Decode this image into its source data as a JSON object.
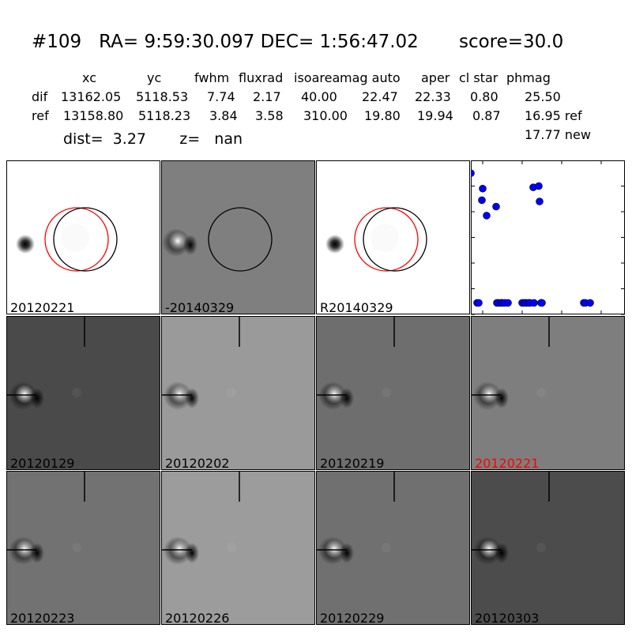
{
  "header": {
    "title_line": "#109   RA= 9:59:30.097 DEC= 1:56:47.02       score=30.0",
    "columns": [
      "xc",
      "yc",
      "fwhm",
      "fluxrad",
      "isoarea",
      "mag auto",
      "aper",
      "cl star",
      "phmag"
    ],
    "rows": [
      {
        "label": "dif",
        "values": [
          "13162.05",
          "5118.53",
          "7.74",
          "2.17",
          "40.00",
          "22.47",
          "22.33",
          "0.80",
          "25.50"
        ]
      },
      {
        "label": "ref",
        "values": [
          "13158.80",
          "5118.23",
          "3.84",
          "3.58",
          "310.00",
          "19.80",
          "19.94",
          "0.87",
          "16.95 ref"
        ]
      }
    ],
    "phmag_new": "17.77 new",
    "dist_line": "dist=  3.27       z=   nan"
  },
  "top_panels": [
    {
      "label": "20120221",
      "bg": "#ffffff",
      "circles": [
        "red",
        "black"
      ]
    },
    {
      "label": "-20140329",
      "bg": "#7f7f7f",
      "circles": [
        "black"
      ]
    },
    {
      "label": "R20140329",
      "bg": "#ffffff",
      "circles": [
        "red",
        "black"
      ]
    }
  ],
  "stamps": [
    {
      "label": "20120129",
      "bg": "#4a4a4a",
      "red": false
    },
    {
      "label": "20120202",
      "bg": "#9a9a9a",
      "red": false
    },
    {
      "label": "20120219",
      "bg": "#6e6e6e",
      "red": false
    },
    {
      "label": "20120221",
      "bg": "#7e7e7e",
      "red": true
    },
    {
      "label": "20120223",
      "bg": "#727272",
      "red": false
    },
    {
      "label": "20120226",
      "bg": "#9c9c9c",
      "red": false
    },
    {
      "label": "20120229",
      "bg": "#707070",
      "red": false
    },
    {
      "label": "20120303",
      "bg": "#4c4c4c",
      "red": false
    }
  ],
  "colors": {
    "marker": "#0000ff",
    "highlight_label": "#ff0000",
    "circle_red": "#ff0000"
  },
  "chart_data": {
    "type": "scatter",
    "xlim": [
      -65,
      130
    ],
    "ylim": [
      26,
      20
    ],
    "xticks": [
      -50,
      0,
      50,
      100
    ],
    "yticks": [
      20,
      21,
      22,
      23,
      24,
      25,
      26
    ],
    "x": [
      -65,
      -51,
      -50,
      -45,
      -33,
      -57,
      -55,
      -32,
      -30,
      -27,
      -25,
      -22,
      -18,
      0,
      3,
      5,
      8,
      10,
      14,
      15,
      21,
      22,
      24,
      25,
      78,
      80,
      86
    ],
    "y": [
      20.5,
      21.55,
      21.1,
      22.15,
      21.8,
      25.55,
      25.55,
      25.55,
      25.55,
      25.55,
      25.55,
      25.55,
      25.55,
      25.55,
      25.55,
      25.55,
      25.55,
      25.55,
      21.05,
      25.55,
      21.0,
      21.6,
      25.55,
      25.55,
      25.55,
      25.55,
      25.55
    ]
  }
}
